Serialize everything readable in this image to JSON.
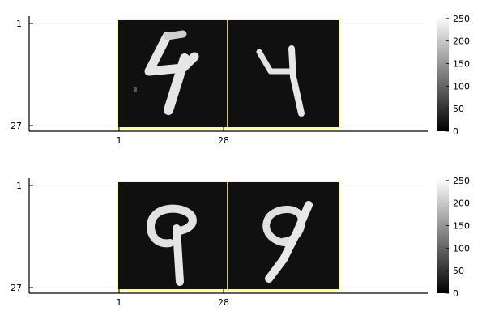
{
  "chart_data": [
    {
      "type": "heatmap",
      "colormap": "grayscale",
      "border_color": "#ffff99",
      "xticks": [
        "1",
        "28"
      ],
      "yticks": [
        "1",
        "27"
      ],
      "xlim": [
        -14,
        128
      ],
      "ylim": [
        1,
        27
      ],
      "clim": [
        0,
        255
      ],
      "colorbar_ticks": [
        "0",
        "50",
        "100",
        "150",
        "200",
        "250"
      ],
      "panels": [
        {
          "digit": "4",
          "style": "zigzag"
        },
        {
          "digit": "4",
          "style": "open-top"
        }
      ]
    },
    {
      "type": "heatmap",
      "colormap": "grayscale",
      "border_color": "#ffff99",
      "xticks": [
        "1",
        "28"
      ],
      "yticks": [
        "1",
        "27"
      ],
      "xlim": [
        -14,
        128
      ],
      "ylim": [
        1,
        27
      ],
      "clim": [
        0,
        255
      ],
      "colorbar_ticks": [
        "0",
        "50",
        "100",
        "150",
        "200",
        "250"
      ],
      "panels": [
        {
          "digit": "9",
          "style": "upright"
        },
        {
          "digit": "9",
          "style": "slanted"
        }
      ]
    }
  ]
}
